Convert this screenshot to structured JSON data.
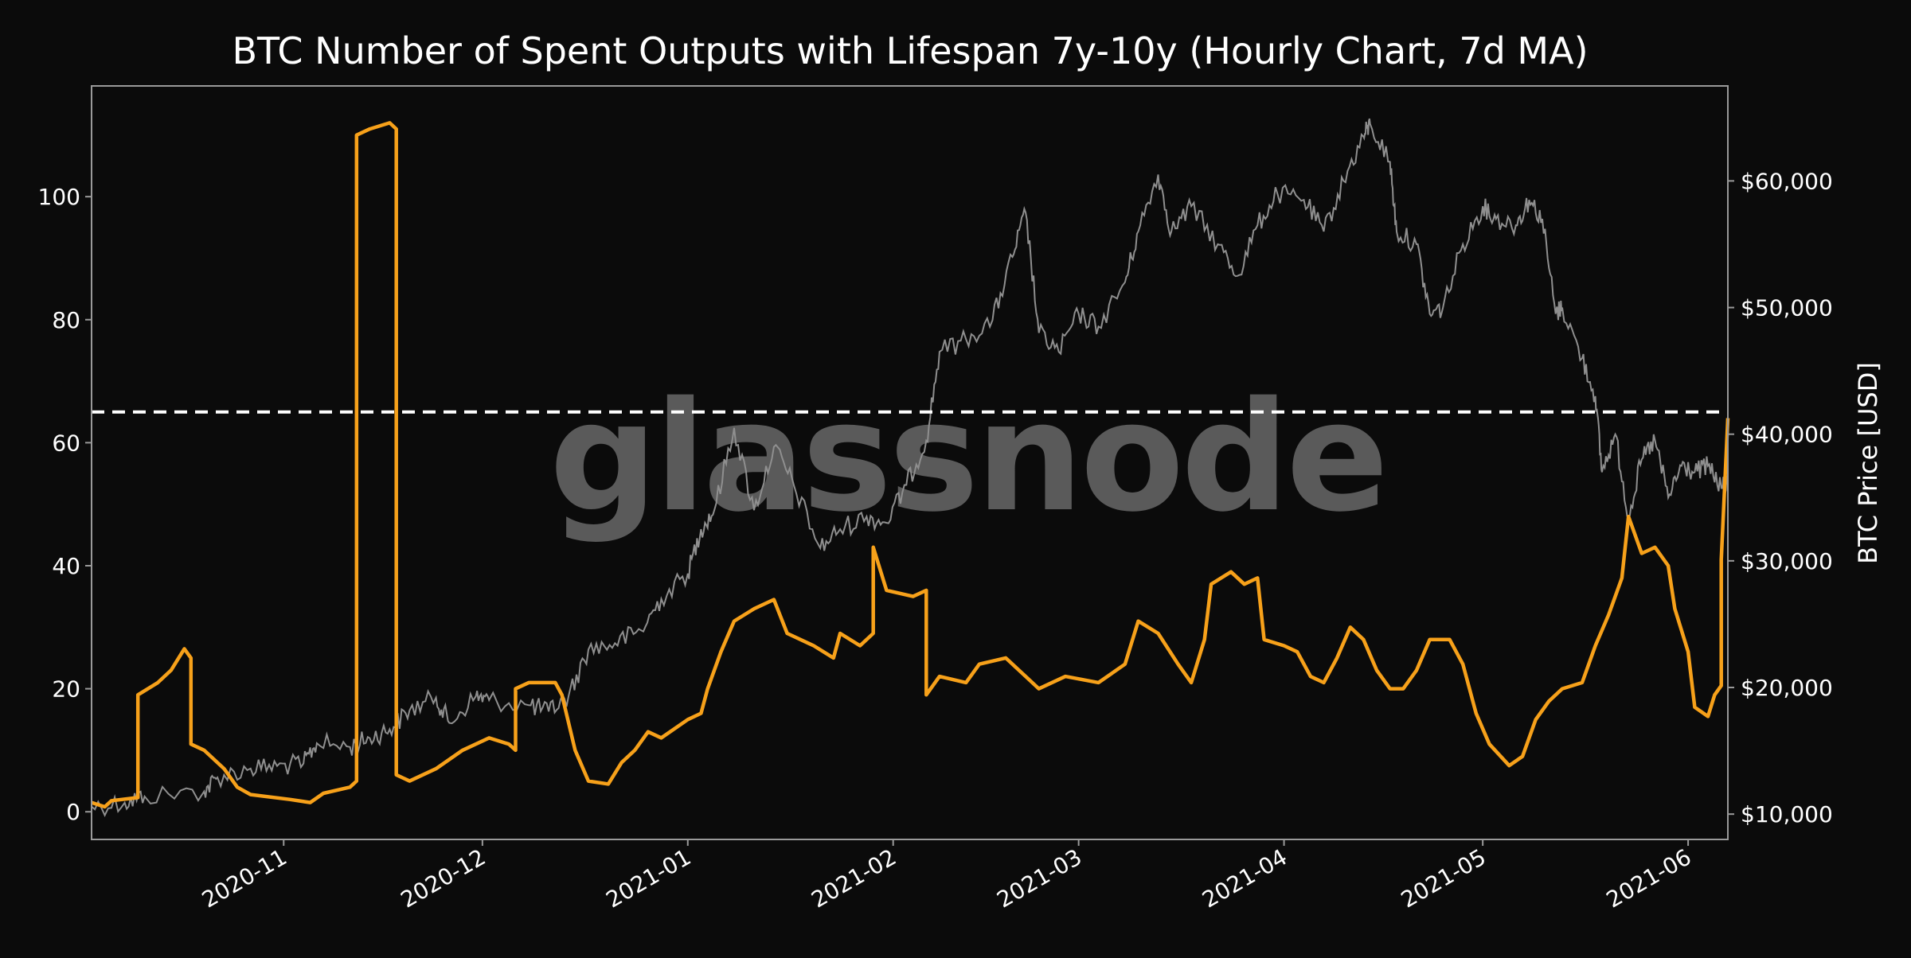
{
  "colors": {
    "background": "#0b0b0b",
    "outputs_line": "#f7a11a",
    "price_line": "#8f8f8f",
    "threshold_line": "#ffffff",
    "axis": "#9a9a9a",
    "text": "#ffffff",
    "watermark": "#5a5a5a"
  },
  "watermark": "glassnode",
  "chart_data": {
    "type": "line",
    "title": "BTC Number of Spent Outputs with Lifespan 7y-10y (Hourly Chart, 7d MA)",
    "xlabel": "",
    "ylabel": "",
    "y2label": "BTC Price [USD]",
    "xlim": [
      "2020-10-03",
      "2021-06-07"
    ],
    "ylim": [
      -4.5,
      118
    ],
    "y2lim": [
      8000,
      67500
    ],
    "grid": false,
    "x_ticks": [
      "2020-11",
      "2020-12",
      "2021-01",
      "2021-02",
      "2021-03",
      "2021-04",
      "2021-05",
      "2021-06"
    ],
    "y_ticks": [
      "0",
      "20",
      "40",
      "60",
      "80",
      "100"
    ],
    "y_tick_values": [
      0,
      20,
      40,
      60,
      80,
      100
    ],
    "y2_ticks": [
      "$10,000",
      "$20,000",
      "$30,000",
      "$40,000",
      "$50,000",
      "$60,000"
    ],
    "y2_tick_values": [
      10000,
      20000,
      30000,
      40000,
      50000,
      60000
    ],
    "threshold": {
      "value": 65,
      "style": "dashed"
    },
    "series": [
      {
        "axis": "left",
        "points": [
          [
            "2020-10-03",
            1.5
          ],
          [
            "2020-10-05",
            0.8
          ],
          [
            "2020-10-06",
            1.8
          ],
          [
            "2020-10-10",
            2.3
          ],
          [
            "2020-10-10",
            19
          ],
          [
            "2020-10-13",
            21
          ],
          [
            "2020-10-15",
            23
          ],
          [
            "2020-10-17",
            26.5
          ],
          [
            "2020-10-18",
            25
          ],
          [
            "2020-10-18",
            11
          ],
          [
            "2020-10-20",
            10
          ],
          [
            "2020-10-23",
            7
          ],
          [
            "2020-10-25",
            4
          ],
          [
            "2020-10-27",
            2.8
          ],
          [
            "2020-11-02",
            2
          ],
          [
            "2020-11-05",
            1.5
          ],
          [
            "2020-11-07",
            3
          ],
          [
            "2020-11-11",
            4
          ],
          [
            "2020-11-12",
            5
          ],
          [
            "2020-11-12",
            110
          ],
          [
            "2020-11-14",
            111
          ],
          [
            "2020-11-17",
            112
          ],
          [
            "2020-11-18",
            111
          ],
          [
            "2020-11-18",
            6
          ],
          [
            "2020-11-20",
            5
          ],
          [
            "2020-11-24",
            7
          ],
          [
            "2020-11-28",
            10
          ],
          [
            "2020-12-02",
            12
          ],
          [
            "2020-12-05",
            11
          ],
          [
            "2020-12-06",
            10
          ],
          [
            "2020-12-06",
            20
          ],
          [
            "2020-12-08",
            21
          ],
          [
            "2020-12-12",
            21
          ],
          [
            "2020-12-13",
            19
          ],
          [
            "2020-12-15",
            10
          ],
          [
            "2020-12-17",
            5
          ],
          [
            "2020-12-20",
            4.5
          ],
          [
            "2020-12-22",
            8
          ],
          [
            "2020-12-24",
            10
          ],
          [
            "2020-12-26",
            13
          ],
          [
            "2020-12-28",
            12
          ],
          [
            "2021-01-01",
            15
          ],
          [
            "2021-01-03",
            16
          ],
          [
            "2021-01-04",
            20
          ],
          [
            "2021-01-06",
            26
          ],
          [
            "2021-01-08",
            31
          ],
          [
            "2021-01-11",
            33
          ],
          [
            "2021-01-14",
            34.5
          ],
          [
            "2021-01-16",
            29
          ],
          [
            "2021-01-20",
            27
          ],
          [
            "2021-01-23",
            25
          ],
          [
            "2021-01-24",
            29
          ],
          [
            "2021-01-27",
            27
          ],
          [
            "2021-01-29",
            29
          ],
          [
            "2021-01-29",
            43
          ],
          [
            "2021-01-31",
            36
          ],
          [
            "2021-02-04",
            35
          ],
          [
            "2021-02-06",
            36
          ],
          [
            "2021-02-06",
            19
          ],
          [
            "2021-02-08",
            22
          ],
          [
            "2021-02-12",
            21
          ],
          [
            "2021-02-14",
            24
          ],
          [
            "2021-02-18",
            25
          ],
          [
            "2021-02-21",
            22
          ],
          [
            "2021-02-23",
            20
          ],
          [
            "2021-02-27",
            22
          ],
          [
            "2021-03-04",
            21
          ],
          [
            "2021-03-08",
            24
          ],
          [
            "2021-03-10",
            31
          ],
          [
            "2021-03-13",
            29
          ],
          [
            "2021-03-16",
            24
          ],
          [
            "2021-03-18",
            21
          ],
          [
            "2021-03-20",
            28
          ],
          [
            "2021-03-21",
            37
          ],
          [
            "2021-03-24",
            39
          ],
          [
            "2021-03-26",
            37
          ],
          [
            "2021-03-28",
            38
          ],
          [
            "2021-03-29",
            28
          ],
          [
            "2021-04-01",
            27
          ],
          [
            "2021-04-03",
            26
          ],
          [
            "2021-04-05",
            22
          ],
          [
            "2021-04-07",
            21
          ],
          [
            "2021-04-09",
            25
          ],
          [
            "2021-04-11",
            30
          ],
          [
            "2021-04-13",
            28
          ],
          [
            "2021-04-15",
            23
          ],
          [
            "2021-04-17",
            20
          ],
          [
            "2021-04-19",
            20
          ],
          [
            "2021-04-21",
            23
          ],
          [
            "2021-04-23",
            28
          ],
          [
            "2021-04-26",
            28
          ],
          [
            "2021-04-28",
            24
          ],
          [
            "2021-04-30",
            16
          ],
          [
            "2021-05-02",
            11
          ],
          [
            "2021-05-05",
            7.5
          ],
          [
            "2021-05-07",
            9
          ],
          [
            "2021-05-09",
            15
          ],
          [
            "2021-05-11",
            18
          ],
          [
            "2021-05-13",
            20
          ],
          [
            "2021-05-16",
            21
          ],
          [
            "2021-05-18",
            27
          ],
          [
            "2021-05-20",
            32
          ],
          [
            "2021-05-22",
            38
          ],
          [
            "2021-05-23",
            48
          ],
          [
            "2021-05-25",
            42
          ],
          [
            "2021-05-27",
            43
          ],
          [
            "2021-05-29",
            40
          ],
          [
            "2021-05-30",
            33
          ],
          [
            "2021-06-01",
            26
          ],
          [
            "2021-06-02",
            17
          ],
          [
            "2021-06-04",
            15.5
          ],
          [
            "2021-06-05",
            19
          ],
          [
            "2021-06-06",
            20.5
          ],
          [
            "2021-06-06",
            35
          ],
          [
            "2021-06-06",
            41
          ],
          [
            "2021-06-07",
            64
          ]
        ]
      },
      {
        "name": "BTC Price [USD]",
        "axis": "right",
        "points": [
          [
            "2020-10-03",
            10600
          ],
          [
            "2020-10-08",
            10900
          ],
          [
            "2020-10-11",
            11400
          ],
          [
            "2020-10-20",
            11800
          ],
          [
            "2020-10-22",
            12900
          ],
          [
            "2020-10-27",
            13600
          ],
          [
            "2020-10-31",
            13800
          ],
          [
            "2020-11-04",
            14000
          ],
          [
            "2020-11-06",
            15600
          ],
          [
            "2020-11-11",
            15300
          ],
          [
            "2020-11-14",
            16000
          ],
          [
            "2020-11-17",
            16700
          ],
          [
            "2020-11-20",
            18200
          ],
          [
            "2020-11-24",
            19200
          ],
          [
            "2020-11-26",
            17200
          ],
          [
            "2020-11-30",
            19300
          ],
          [
            "2020-12-02",
            19000
          ],
          [
            "2020-12-08",
            18600
          ],
          [
            "2020-12-11",
            18100
          ],
          [
            "2020-12-14",
            19300
          ],
          [
            "2020-12-17",
            23000
          ],
          [
            "2020-12-21",
            23500
          ],
          [
            "2020-12-25",
            24500
          ],
          [
            "2020-12-28",
            27000
          ],
          [
            "2021-01-01",
            29000
          ],
          [
            "2021-01-03",
            32500
          ],
          [
            "2021-01-05",
            34000
          ],
          [
            "2021-01-08",
            40500
          ],
          [
            "2021-01-11",
            34000
          ],
          [
            "2021-01-14",
            39000
          ],
          [
            "2021-01-17",
            36000
          ],
          [
            "2021-01-21",
            31000
          ],
          [
            "2021-01-24",
            32500
          ],
          [
            "2021-01-28",
            33500
          ],
          [
            "2021-01-31",
            33000
          ],
          [
            "2021-02-03",
            36000
          ],
          [
            "2021-02-06",
            39500
          ],
          [
            "2021-02-08",
            46500
          ],
          [
            "2021-02-12",
            47500
          ],
          [
            "2021-02-16",
            49000
          ],
          [
            "2021-02-19",
            54000
          ],
          [
            "2021-02-21",
            57500
          ],
          [
            "2021-02-23",
            48000
          ],
          [
            "2021-02-26",
            46500
          ],
          [
            "2021-03-01",
            49500
          ],
          [
            "2021-03-04",
            48500
          ],
          [
            "2021-03-08",
            52000
          ],
          [
            "2021-03-10",
            56000
          ],
          [
            "2021-03-13",
            60500
          ],
          [
            "2021-03-15",
            56000
          ],
          [
            "2021-03-18",
            58000
          ],
          [
            "2021-03-22",
            55000
          ],
          [
            "2021-03-25",
            52500
          ],
          [
            "2021-03-28",
            56500
          ],
          [
            "2021-03-31",
            59000
          ],
          [
            "2021-04-04",
            58500
          ],
          [
            "2021-04-07",
            56000
          ],
          [
            "2021-04-10",
            60000
          ],
          [
            "2021-04-13",
            63500
          ],
          [
            "2021-04-14",
            64500
          ],
          [
            "2021-04-17",
            61500
          ],
          [
            "2021-04-18",
            56000
          ],
          [
            "2021-04-21",
            55000
          ],
          [
            "2021-04-23",
            49500
          ],
          [
            "2021-04-25",
            50000
          ],
          [
            "2021-04-28",
            55000
          ],
          [
            "2021-05-01",
            58000
          ],
          [
            "2021-05-03",
            57000
          ],
          [
            "2021-05-06",
            56500
          ],
          [
            "2021-05-08",
            58500
          ],
          [
            "2021-05-10",
            57000
          ],
          [
            "2021-05-12",
            49500
          ],
          [
            "2021-05-13",
            50000
          ],
          [
            "2021-05-16",
            46000
          ],
          [
            "2021-05-18",
            43000
          ],
          [
            "2021-05-19",
            37000
          ],
          [
            "2021-05-21",
            40000
          ],
          [
            "2021-05-23",
            33500
          ],
          [
            "2021-05-25",
            38000
          ],
          [
            "2021-05-27",
            39500
          ],
          [
            "2021-05-29",
            35000
          ],
          [
            "2021-05-31",
            37500
          ],
          [
            "2021-06-02",
            37000
          ],
          [
            "2021-06-04",
            37500
          ],
          [
            "2021-06-06",
            35800
          ],
          [
            "2021-06-07",
            36000
          ]
        ]
      }
    ]
  }
}
